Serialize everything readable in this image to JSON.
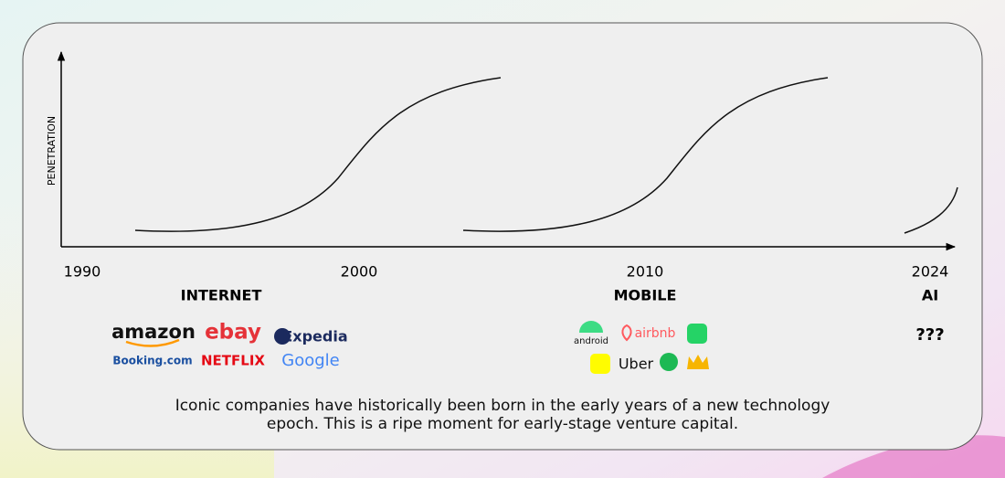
{
  "axis": {
    "y_label": "PENETRATION",
    "x_labels": [
      "1990",
      "2000",
      "2010",
      "2024"
    ]
  },
  "eras": [
    {
      "label": "INTERNET",
      "companies": [
        "amazon",
        "ebay",
        "Expedia",
        "Booking.com",
        "NETFLIX",
        "Google"
      ]
    },
    {
      "label": "MOBILE",
      "companies": [
        "android",
        "airbnb",
        "Uber"
      ]
    },
    {
      "label": "AI",
      "companies": [
        "???"
      ]
    }
  ],
  "caption": [
    "Iconic companies have historically been born in the early years of a new technology",
    "epoch. This is a ripe moment for early-stage venture capital."
  ]
}
